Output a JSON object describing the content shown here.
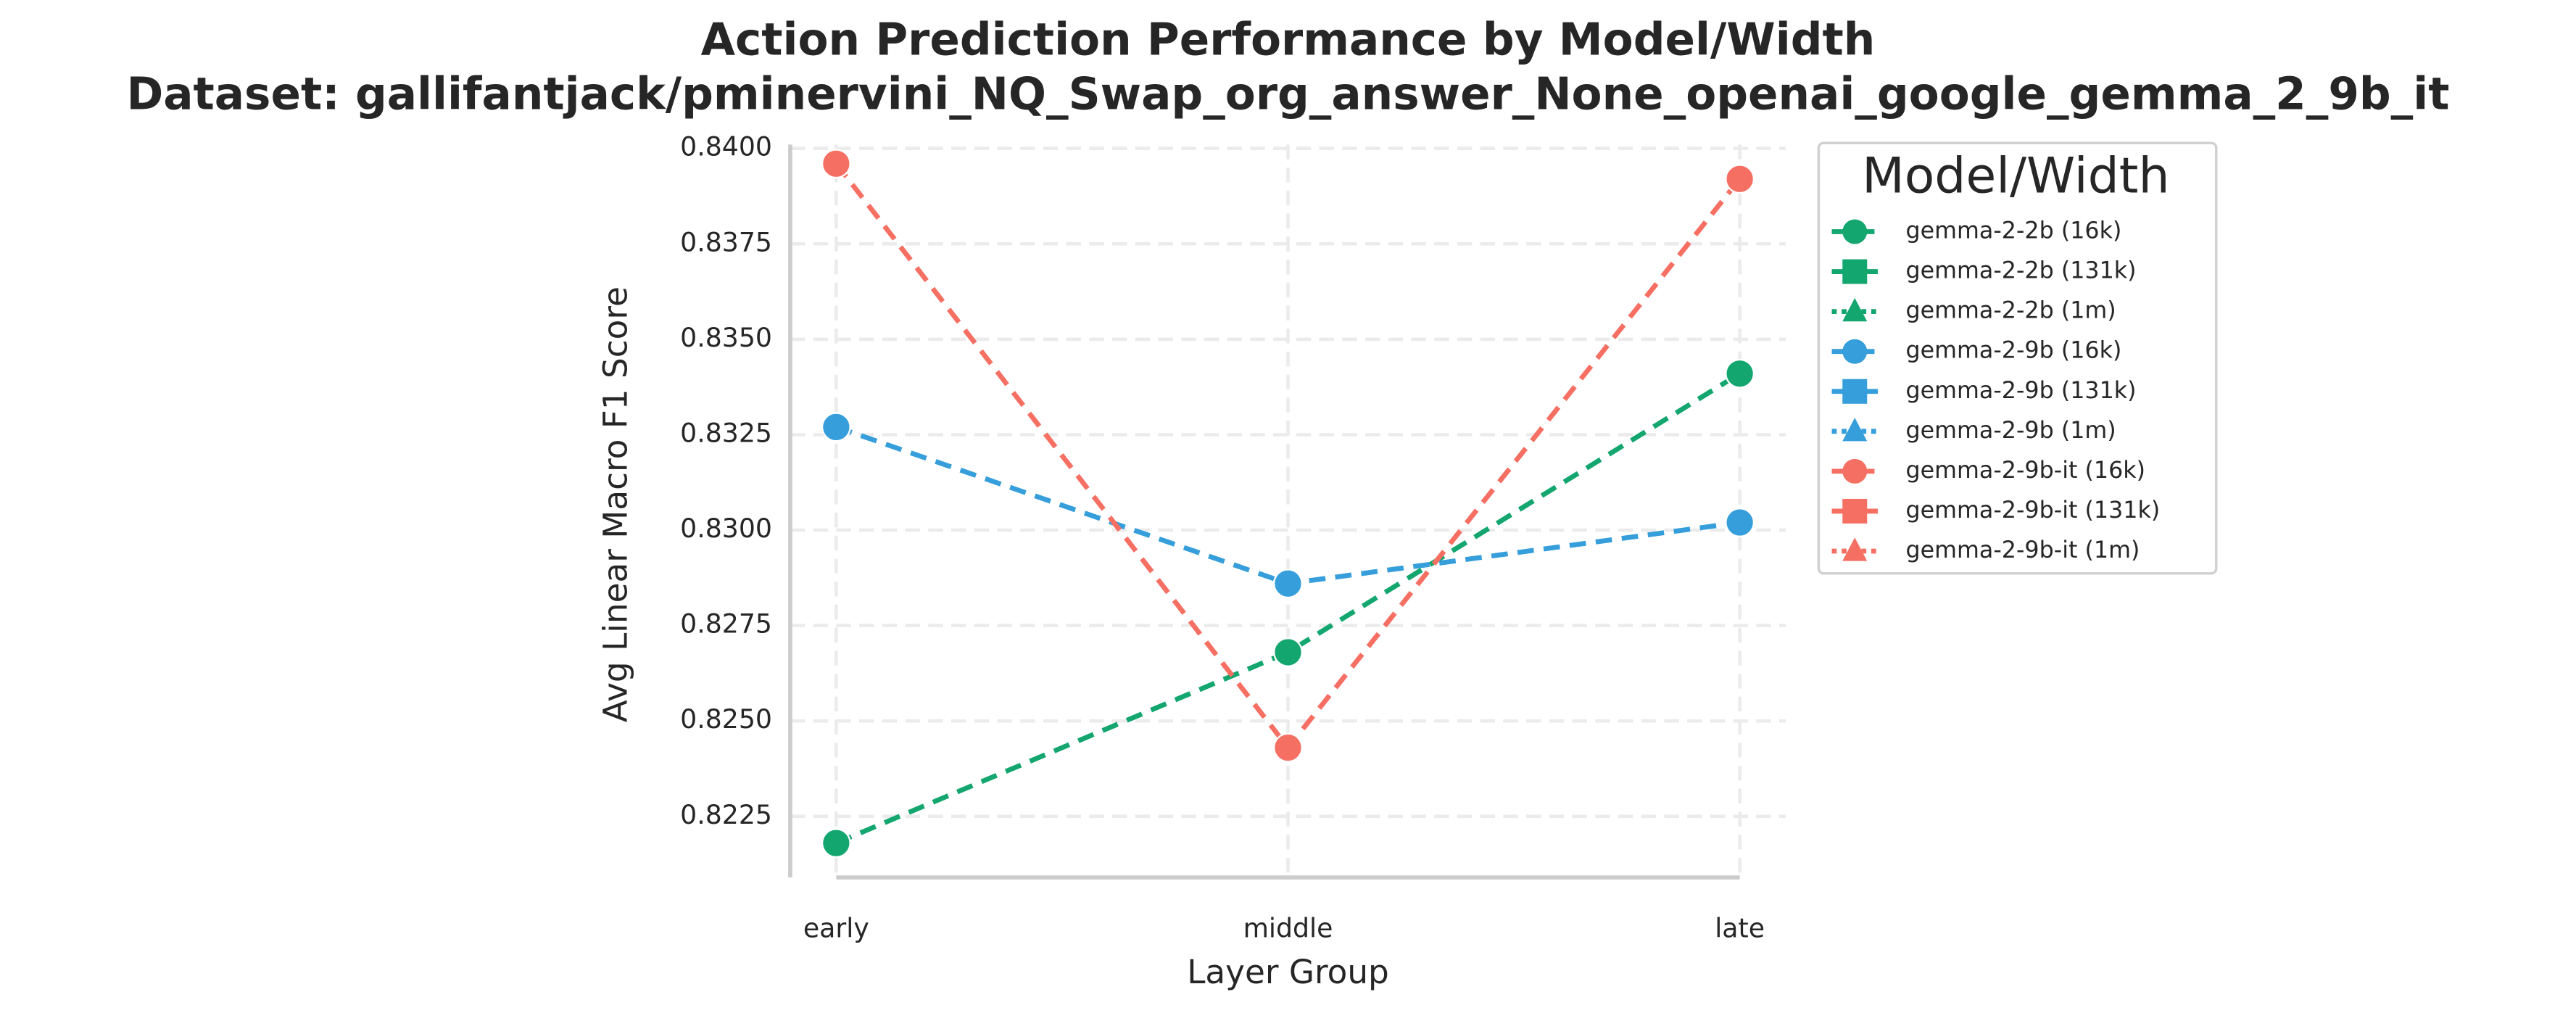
{
  "chart_data": {
    "type": "line",
    "title": "Action Prediction Performance by Model/Width",
    "subtitle": "Dataset: gallifantjack/pminervini_NQ_Swap_org_answer_None_openai_google_gemma_2_9b_it",
    "x_label": "Layer Group",
    "y_label": "Avg Linear Macro F1 Score",
    "categories": [
      "early",
      "middle",
      "late"
    ],
    "ylim": [
      0.8209,
      0.8401
    ],
    "yticks": [
      {
        "value": 0.8225,
        "label": "0.8225"
      },
      {
        "value": 0.825,
        "label": "0.8250"
      },
      {
        "value": 0.8275,
        "label": "0.8275"
      },
      {
        "value": 0.83,
        "label": "0.8300"
      },
      {
        "value": 0.8325,
        "label": "0.8325"
      },
      {
        "value": 0.835,
        "label": "0.8350"
      },
      {
        "value": 0.8375,
        "label": "0.8375"
      },
      {
        "value": 0.84,
        "label": "0.8400"
      }
    ],
    "grid": true,
    "legend": {
      "title": "Model/Width",
      "position": "outside right"
    },
    "series": [
      {
        "name": "gemma-2-2b (16k)",
        "color": "#14a66f",
        "marker": "circle",
        "linestyle": "dashed",
        "values": [
          0.8218,
          0.8268,
          0.8341
        ]
      },
      {
        "name": "gemma-2-2b (131k)",
        "color": "#14a66f",
        "marker": "square",
        "linestyle": "solid",
        "values": [
          null,
          null,
          null
        ]
      },
      {
        "name": "gemma-2-2b (1m)",
        "color": "#14a66f",
        "marker": "triangle",
        "linestyle": "dotted",
        "values": [
          null,
          null,
          null
        ]
      },
      {
        "name": "gemma-2-9b (16k)",
        "color": "#359edb",
        "marker": "circle",
        "linestyle": "dashed",
        "values": [
          0.8327,
          0.8286,
          0.8302
        ]
      },
      {
        "name": "gemma-2-9b (131k)",
        "color": "#359edb",
        "marker": "square",
        "linestyle": "solid",
        "values": [
          null,
          null,
          null
        ]
      },
      {
        "name": "gemma-2-9b (1m)",
        "color": "#359edb",
        "marker": "triangle",
        "linestyle": "dotted",
        "values": [
          null,
          null,
          null
        ]
      },
      {
        "name": "gemma-2-9b-it (16k)",
        "color": "#f66f63",
        "marker": "circle",
        "linestyle": "dashed",
        "values": [
          0.8396,
          0.8243,
          0.8392
        ]
      },
      {
        "name": "gemma-2-9b-it (131k)",
        "color": "#f66f63",
        "marker": "square",
        "linestyle": "solid",
        "values": [
          null,
          null,
          null
        ]
      },
      {
        "name": "gemma-2-9b-it (1m)",
        "color": "#f66f63",
        "marker": "triangle",
        "linestyle": "dotted",
        "values": [
          null,
          null,
          null
        ]
      }
    ]
  }
}
